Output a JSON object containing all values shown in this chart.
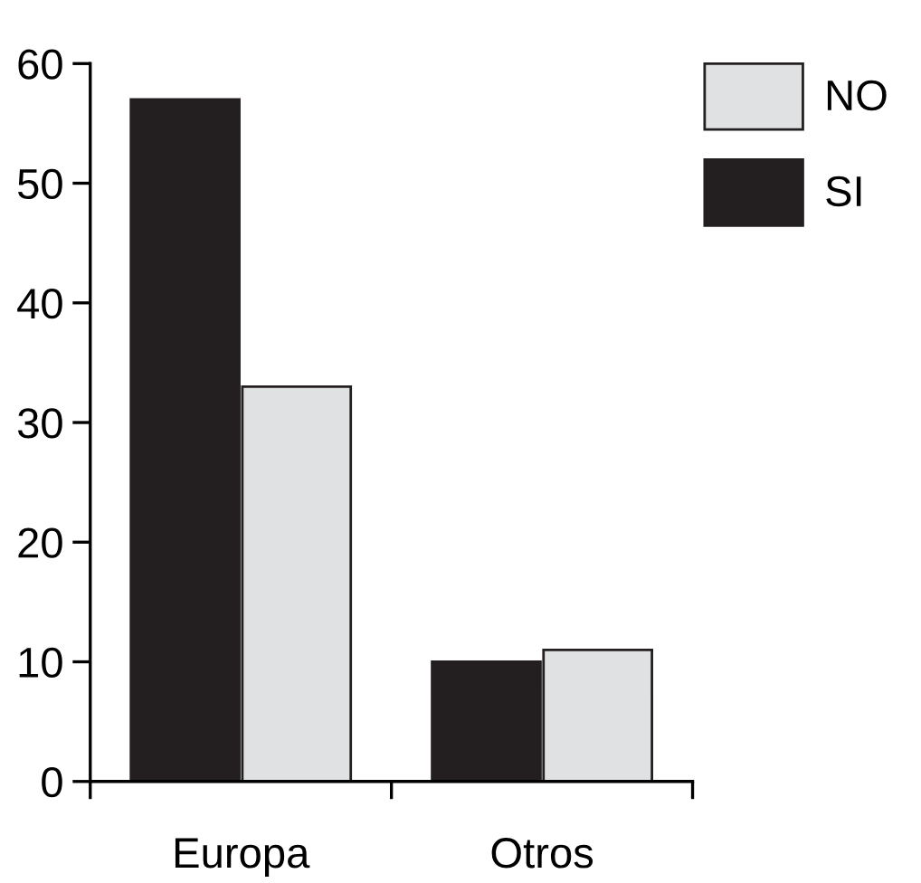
{
  "chart_data": {
    "type": "bar",
    "categories": [
      "Europa",
      "Otros"
    ],
    "series": [
      {
        "name": "SI",
        "color": "#231f20",
        "values": [
          57,
          10
        ]
      },
      {
        "name": "NO",
        "color": "#e0e1e2",
        "values": [
          33,
          11
        ]
      }
    ],
    "ylim": [
      0,
      60
    ],
    "yticks": [
      0,
      10,
      20,
      30,
      40,
      50,
      60
    ],
    "legend": "top right",
    "grid": false
  }
}
